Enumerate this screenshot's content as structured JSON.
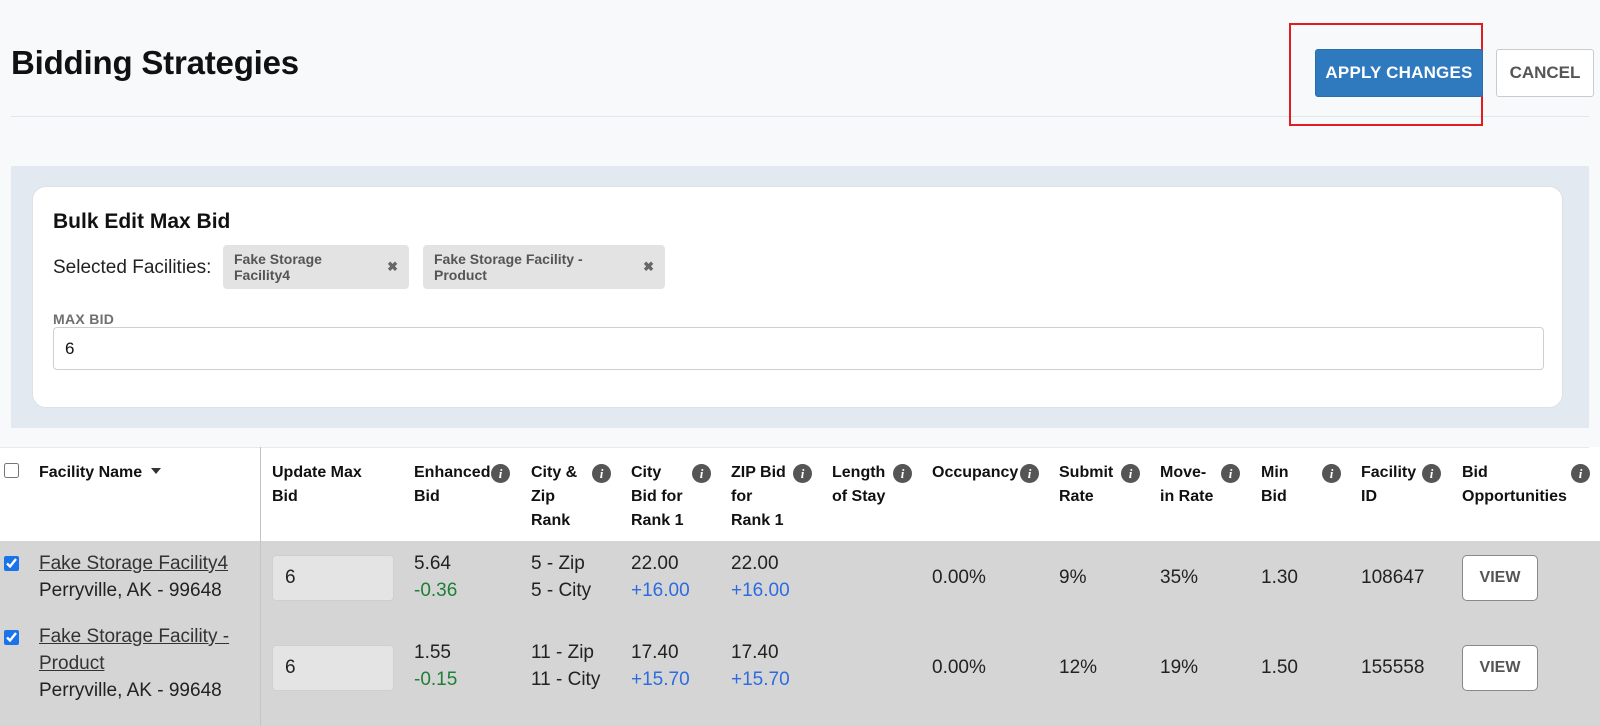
{
  "header": {
    "title": "Bidding Strategies",
    "apply_label": "APPLY CHANGES",
    "cancel_label": "CANCEL"
  },
  "bulk_edit": {
    "title": "Bulk Edit Max Bid",
    "selected_label": "Selected Facilities:",
    "chips": [
      {
        "label": "Fake Storage Facility4",
        "remove_icon": "close-icon"
      },
      {
        "label": "Fake Storage Facility - Product",
        "remove_icon": "close-icon"
      }
    ],
    "max_bid_label": "MAX BID",
    "max_bid_value": "6"
  },
  "table": {
    "columns": [
      {
        "line1": "Facility Name",
        "line2": "",
        "line3": ""
      },
      {
        "line1": "Update Max",
        "line2": "Bid",
        "line3": ""
      },
      {
        "line1": "Enhanced",
        "line2": "Bid",
        "line3": ""
      },
      {
        "line1": "City &",
        "line2": "Zip",
        "line3": "Rank"
      },
      {
        "line1": "City",
        "line2": "Bid for",
        "line3": "Rank 1"
      },
      {
        "line1": "ZIP Bid",
        "line2": "for",
        "line3": "Rank 1"
      },
      {
        "line1": "Length",
        "line2": "of Stay",
        "line3": ""
      },
      {
        "line1": "Occupancy",
        "line2": "",
        "line3": ""
      },
      {
        "line1": "Submit",
        "line2": "Rate",
        "line3": ""
      },
      {
        "line1": "Move-",
        "line2": "in Rate",
        "line3": ""
      },
      {
        "line1": "Min",
        "line2": "Bid",
        "line3": ""
      },
      {
        "line1": "Facility",
        "line2": "ID",
        "line3": ""
      },
      {
        "line1": "Bid",
        "line2": "Opportunities",
        "line3": ""
      }
    ],
    "info_icon_glyph": "i",
    "rows": [
      {
        "checked": true,
        "facility_name": "Fake Storage Facility4",
        "facility_name_line2": "",
        "location": "Perryville, AK - 99648",
        "max_bid": "6",
        "enhanced_bid": "5.64",
        "enhanced_delta": "-0.36",
        "zip_rank": "5 - Zip",
        "city_rank": "5 - City",
        "city_bid": "22.00",
        "city_delta": "+16.00",
        "zip_bid": "22.00",
        "zip_delta": "+16.00",
        "length_of_stay": "",
        "occupancy": "0.00%",
        "submit_rate": "9%",
        "move_in_rate": "35%",
        "min_bid": "1.30",
        "facility_id": "108647",
        "view_label": "VIEW"
      },
      {
        "checked": true,
        "facility_name": "Fake Storage Facility -",
        "facility_name_line2": "Product",
        "location": "Perryville, AK - 99648",
        "max_bid": "6",
        "enhanced_bid": "1.55",
        "enhanced_delta": "-0.15",
        "zip_rank": "11 - Zip",
        "city_rank": "11 - City",
        "city_bid": "17.40",
        "city_delta": "+15.70",
        "zip_bid": "17.40",
        "zip_delta": "+15.70",
        "length_of_stay": "",
        "occupancy": "0.00%",
        "submit_rate": "12%",
        "move_in_rate": "19%",
        "min_bid": "1.50",
        "facility_id": "155558",
        "view_label": "VIEW"
      }
    ]
  },
  "colors": {
    "primary": "#2f79be",
    "highlight": "#e01e22",
    "negative": "#1e7f35",
    "positive": "#2d6ce0",
    "row_bg": "#d5d5d5",
    "panel_bg": "#e3e9f1"
  }
}
